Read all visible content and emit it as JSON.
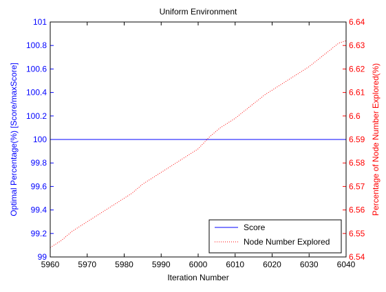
{
  "chart_data": {
    "type": "line",
    "title": "Uniform Environment",
    "xlabel": "Iteration Number",
    "ylabel_left": "Optimal Percentage(%) [Score/maxScore]",
    "ylabel_right": "Percentage of Node Number Explored(%)",
    "xlim": [
      5960,
      6040
    ],
    "ylim_left": [
      99,
      101
    ],
    "ylim_right": [
      6.54,
      6.64
    ],
    "x_ticks": [
      "5960",
      "5970",
      "5980",
      "5990",
      "6000",
      "6010",
      "6020",
      "6030",
      "6040"
    ],
    "y_left_ticks": [
      "99",
      "99.2",
      "99.4",
      "99.6",
      "99.8",
      "100",
      "100.2",
      "100.4",
      "100.6",
      "100.8",
      "101"
    ],
    "y_right_ticks": [
      "6.54",
      "6.55",
      "6.56",
      "6.57",
      "6.58",
      "6.59",
      "6.6",
      "6.61",
      "6.62",
      "6.63",
      "6.64"
    ],
    "colors": {
      "left_axis": "#0000ff",
      "right_axis": "#ff0000",
      "score": "#0000ff",
      "nodes": "#ff0000"
    },
    "legend_position": "bottom-right",
    "series": [
      {
        "name": "Score",
        "axis": "left",
        "style": "solid",
        "x": [
          5960,
          6040
        ],
        "y": [
          100,
          100
        ]
      },
      {
        "name": "Node Number Explored",
        "axis": "right",
        "style": "dotted",
        "x": [
          5960,
          5963,
          5966,
          5970,
          5974,
          5978,
          5982,
          5985,
          5988,
          5992,
          5996,
          6000,
          6003,
          6006,
          6010,
          6014,
          6018,
          6022,
          6026,
          6030,
          6034,
          6038,
          6040
        ],
        "y": [
          6.544,
          6.547,
          6.551,
          6.555,
          6.559,
          6.563,
          6.567,
          6.571,
          6.574,
          6.578,
          6.582,
          6.586,
          6.591,
          6.595,
          6.599,
          6.604,
          6.609,
          6.613,
          6.617,
          6.621,
          6.626,
          6.631,
          6.632
        ]
      }
    ]
  }
}
